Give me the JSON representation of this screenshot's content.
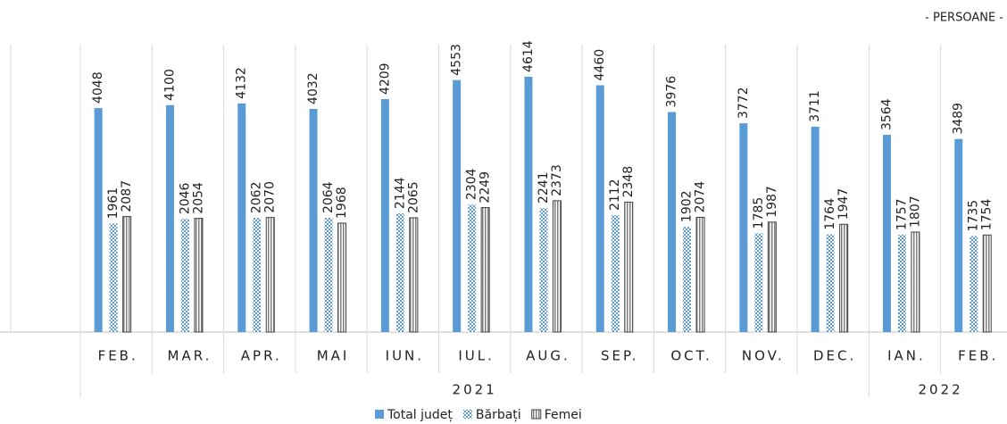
{
  "chart_data": {
    "type": "bar",
    "unit_note": "- PERSOANE -",
    "groups": [
      {
        "label": "2021",
        "categories": [
          "FEB.",
          "MAR.",
          "APR.",
          "MAI",
          "IUN.",
          "IUL.",
          "AUG.",
          "SEP.",
          "OCT.",
          "NOV.",
          "DEC."
        ]
      },
      {
        "label": "2022",
        "categories": [
          "IAN.",
          "FEB."
        ]
      }
    ],
    "series": [
      {
        "name": "Total județ",
        "color": "#5b9bd5",
        "pattern": "solid",
        "values": [
          4048,
          4100,
          4132,
          4032,
          4209,
          4553,
          4614,
          4460,
          3976,
          3772,
          3711,
          3564,
          3489
        ]
      },
      {
        "name": "Bărbați",
        "color": "#5b9bd5",
        "pattern": "checker",
        "values": [
          1961,
          2046,
          2062,
          2064,
          2144,
          2304,
          2241,
          2112,
          1902,
          1785,
          1764,
          1757,
          1735
        ]
      },
      {
        "name": "Femei",
        "color": "#7f7f7f",
        "pattern": "stripes",
        "values": [
          2087,
          2054,
          2070,
          1968,
          2065,
          2249,
          2373,
          2348,
          2074,
          1987,
          1947,
          1807,
          1754
        ]
      }
    ],
    "ylim": [
      0,
      6000
    ],
    "legend": "bottom"
  }
}
